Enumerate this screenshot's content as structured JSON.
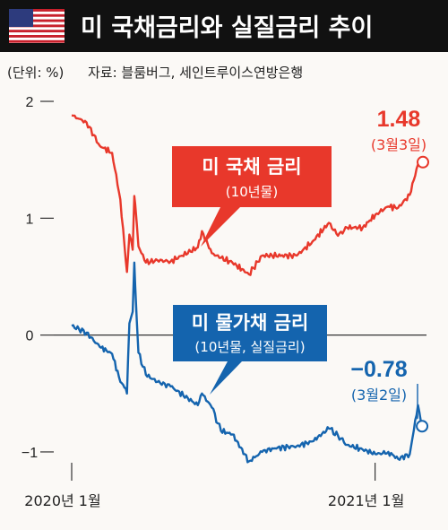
{
  "header": {
    "title": "미 국채금리와 실질금리 추이",
    "flag_icon": "us-flag-icon"
  },
  "meta": {
    "unit": "(단위: %)",
    "source": "자료: 블룸버그, 세인트루이스연방은행"
  },
  "colors": {
    "nominal": "#e8382b",
    "real": "#1464ae",
    "title_bg": "#111111"
  },
  "chart_data": {
    "type": "line",
    "ylim": [
      -1.2,
      2.1
    ],
    "yticks": [
      {
        "value": 2,
        "label": "2"
      },
      {
        "value": 1,
        "label": "1"
      },
      {
        "value": 0,
        "label": "0"
      },
      {
        "value": -1,
        "label": "−1"
      }
    ],
    "xticks": [
      "2020년 1월",
      "2021년 1월"
    ],
    "series": [
      {
        "name": "미 국채 금리",
        "sublabel": "(10년물)",
        "color": "#e8382b",
        "x": [
          "2020-01-02",
          "2020-01-20",
          "2020-02-05",
          "2020-02-20",
          "2020-03-01",
          "2020-03-06",
          "2020-03-09",
          "2020-03-12",
          "2020-03-16",
          "2020-03-18",
          "2020-03-19",
          "2020-03-23",
          "2020-04-01",
          "2020-04-15",
          "2020-05-01",
          "2020-06-03",
          "2020-06-08",
          "2020-06-20",
          "2020-07-01",
          "2020-07-15",
          "2020-08-04",
          "2020-08-20",
          "2020-09-01",
          "2020-10-01",
          "2020-10-20",
          "2020-11-09",
          "2020-11-20",
          "2020-12-01",
          "2020-12-20",
          "2021-01-06",
          "2021-01-20",
          "2021-02-01",
          "2021-02-15",
          "2021-02-25",
          "2021-03-03"
        ],
        "values": [
          1.88,
          1.82,
          1.62,
          1.56,
          1.16,
          0.77,
          0.54,
          0.86,
          0.73,
          1.19,
          1.12,
          0.76,
          0.62,
          0.64,
          0.63,
          0.75,
          0.89,
          0.7,
          0.66,
          0.62,
          0.52,
          0.68,
          0.68,
          0.68,
          0.8,
          0.96,
          0.85,
          0.92,
          0.92,
          1.04,
          1.1,
          1.09,
          1.2,
          1.46,
          1.48
        ]
      },
      {
        "name": "미 물가채 금리",
        "sublabel": "(10년물, 실질금리)",
        "color": "#1464ae",
        "x": [
          "2020-01-02",
          "2020-01-20",
          "2020-02-05",
          "2020-02-20",
          "2020-03-01",
          "2020-03-06",
          "2020-03-09",
          "2020-03-12",
          "2020-03-16",
          "2020-03-18",
          "2020-03-19",
          "2020-03-23",
          "2020-04-01",
          "2020-04-15",
          "2020-05-01",
          "2020-06-03",
          "2020-06-08",
          "2020-06-20",
          "2020-07-01",
          "2020-07-15",
          "2020-08-04",
          "2020-08-20",
          "2020-09-01",
          "2020-10-01",
          "2020-10-20",
          "2020-11-09",
          "2020-11-20",
          "2020-12-01",
          "2020-12-20",
          "2021-01-06",
          "2021-01-20",
          "2021-02-01",
          "2021-02-15",
          "2021-02-25",
          "2021-03-02"
        ],
        "values": [
          0.08,
          0.02,
          -0.1,
          -0.16,
          -0.4,
          -0.45,
          -0.5,
          0.1,
          0.2,
          0.62,
          0.42,
          -0.15,
          -0.34,
          -0.4,
          -0.44,
          -0.6,
          -0.5,
          -0.62,
          -0.82,
          -0.85,
          -1.08,
          -1.0,
          -0.97,
          -0.95,
          -0.91,
          -0.8,
          -0.86,
          -0.94,
          -0.98,
          -1.02,
          -1.0,
          -1.06,
          -1.02,
          -0.6,
          -0.78
        ]
      }
    ],
    "annotations": [
      {
        "series": 0,
        "value_label": "1.48",
        "date_label": "(3월3일)"
      },
      {
        "series": 1,
        "value_label": "−0.78",
        "date_label": "(3월2일)"
      }
    ]
  }
}
